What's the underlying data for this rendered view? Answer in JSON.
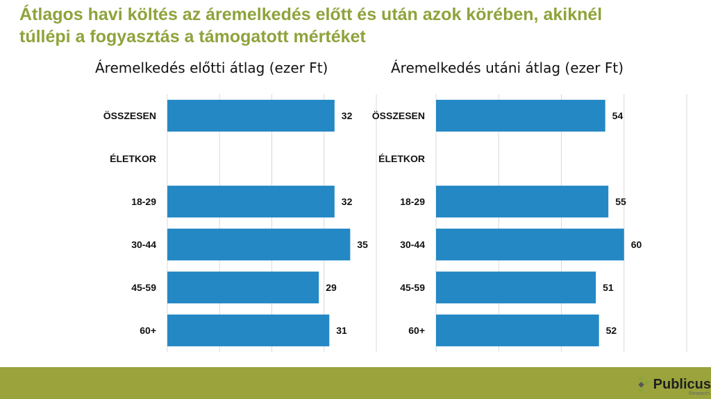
{
  "title": "Átlagos havi költés az áremelkedés előtt és után azok körében, akiknél túllépi a fogyasztás a támogatott mértéket",
  "chart_data": [
    {
      "type": "bar",
      "orientation": "horizontal",
      "title": "Áremelkedés előtti átlag (ezer Ft)",
      "categories": [
        "ÖSSZESEN",
        "ÉLETKOR",
        "18-29",
        "30-44",
        "45-59",
        "60+"
      ],
      "values": [
        32,
        null,
        32,
        35,
        29,
        31
      ],
      "xlim": [
        0,
        40
      ],
      "grid": true,
      "bar_color": "#2488c5"
    },
    {
      "type": "bar",
      "orientation": "horizontal",
      "title": "Áremelkedés utáni átlag (ezer Ft)",
      "categories": [
        "ÖSSZESEN",
        "ÉLETKOR",
        "18-29",
        "30-44",
        "45-59",
        "60+"
      ],
      "values": [
        54,
        null,
        55,
        60,
        51,
        52
      ],
      "xlim": [
        0,
        80
      ],
      "grid": true,
      "bar_color": "#2488c5"
    }
  ],
  "logo": {
    "name": "Publicus",
    "subtitle": "Research"
  },
  "colors": {
    "title": "#8ea33b",
    "footer": "#9aa33c",
    "bar": "#2488c5"
  }
}
